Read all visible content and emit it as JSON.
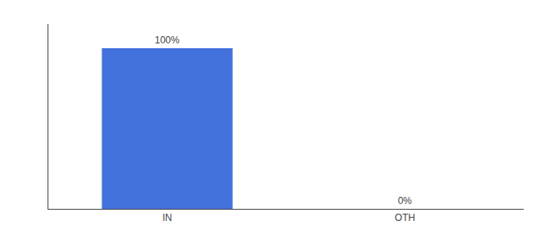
{
  "chart_data": {
    "type": "bar",
    "categories": [
      "IN",
      "OTH"
    ],
    "values": [
      100,
      0
    ],
    "value_labels": [
      "100%",
      "0%"
    ],
    "color": "#4472DD",
    "ylim": [
      0,
      115
    ],
    "grid": false,
    "data_labels": true,
    "tick_labels": "x"
  }
}
